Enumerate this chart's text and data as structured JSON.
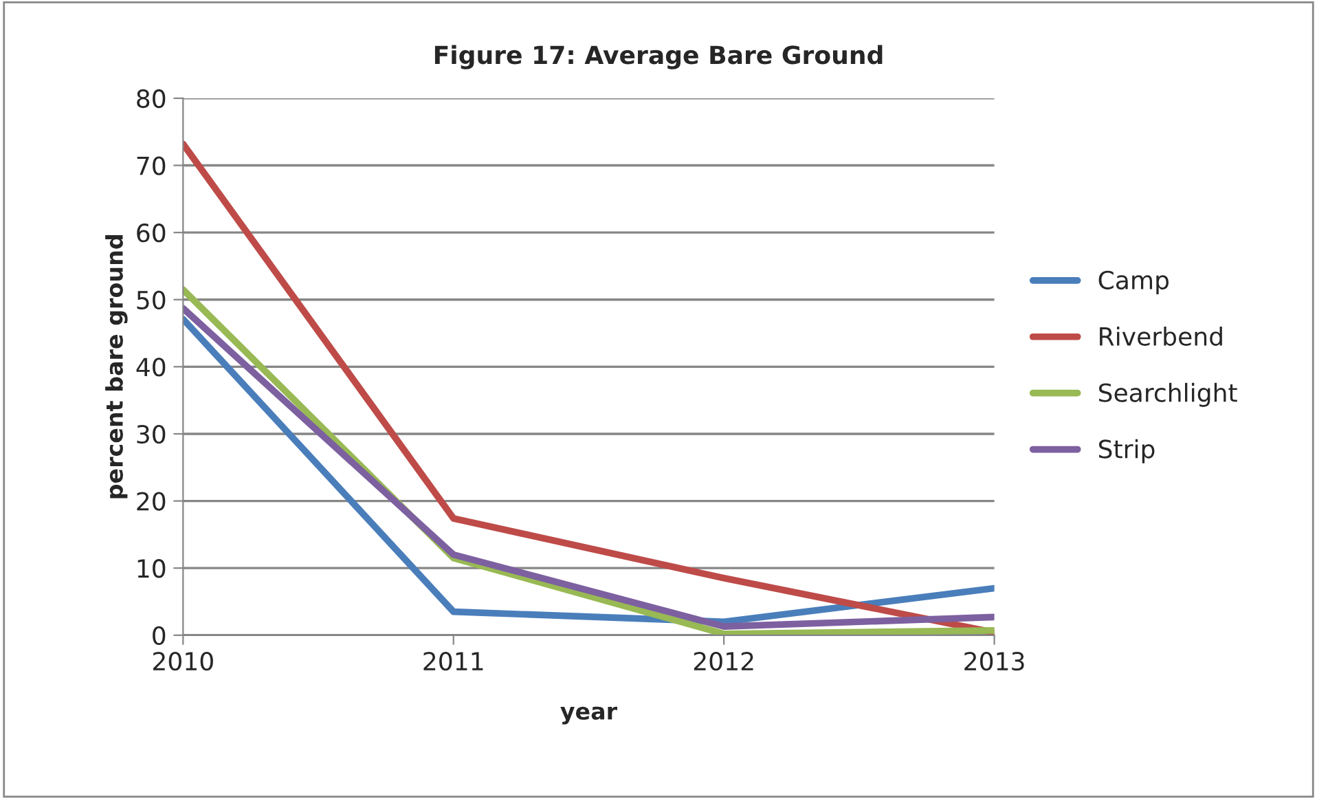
{
  "chart_data": {
    "type": "line",
    "title": "Figure 17: Average Bare Ground",
    "xlabel": "year",
    "ylabel": "percent bare ground",
    "categories": [
      "2010",
      "2011",
      "2012",
      "2013"
    ],
    "series": [
      {
        "name": "Camp",
        "color": "#4a7ebb",
        "values": [
          47.1,
          3.5,
          2.0,
          7.0
        ]
      },
      {
        "name": "Riverbend",
        "color": "#be4b48",
        "values": [
          73.2,
          17.4,
          8.5,
          0.4
        ]
      },
      {
        "name": "Searchlight",
        "color": "#98b954",
        "values": [
          51.5,
          11.5,
          0.2,
          0.7
        ]
      },
      {
        "name": "Strip",
        "color": "#7d60a0",
        "values": [
          48.7,
          12.0,
          1.3,
          2.7
        ]
      }
    ],
    "ylim": [
      0,
      80
    ],
    "yticks": [
      0,
      10,
      20,
      30,
      40,
      50,
      60,
      70,
      80
    ],
    "grid": "y",
    "legend": "right",
    "marker": "none",
    "line_style": "solid"
  }
}
